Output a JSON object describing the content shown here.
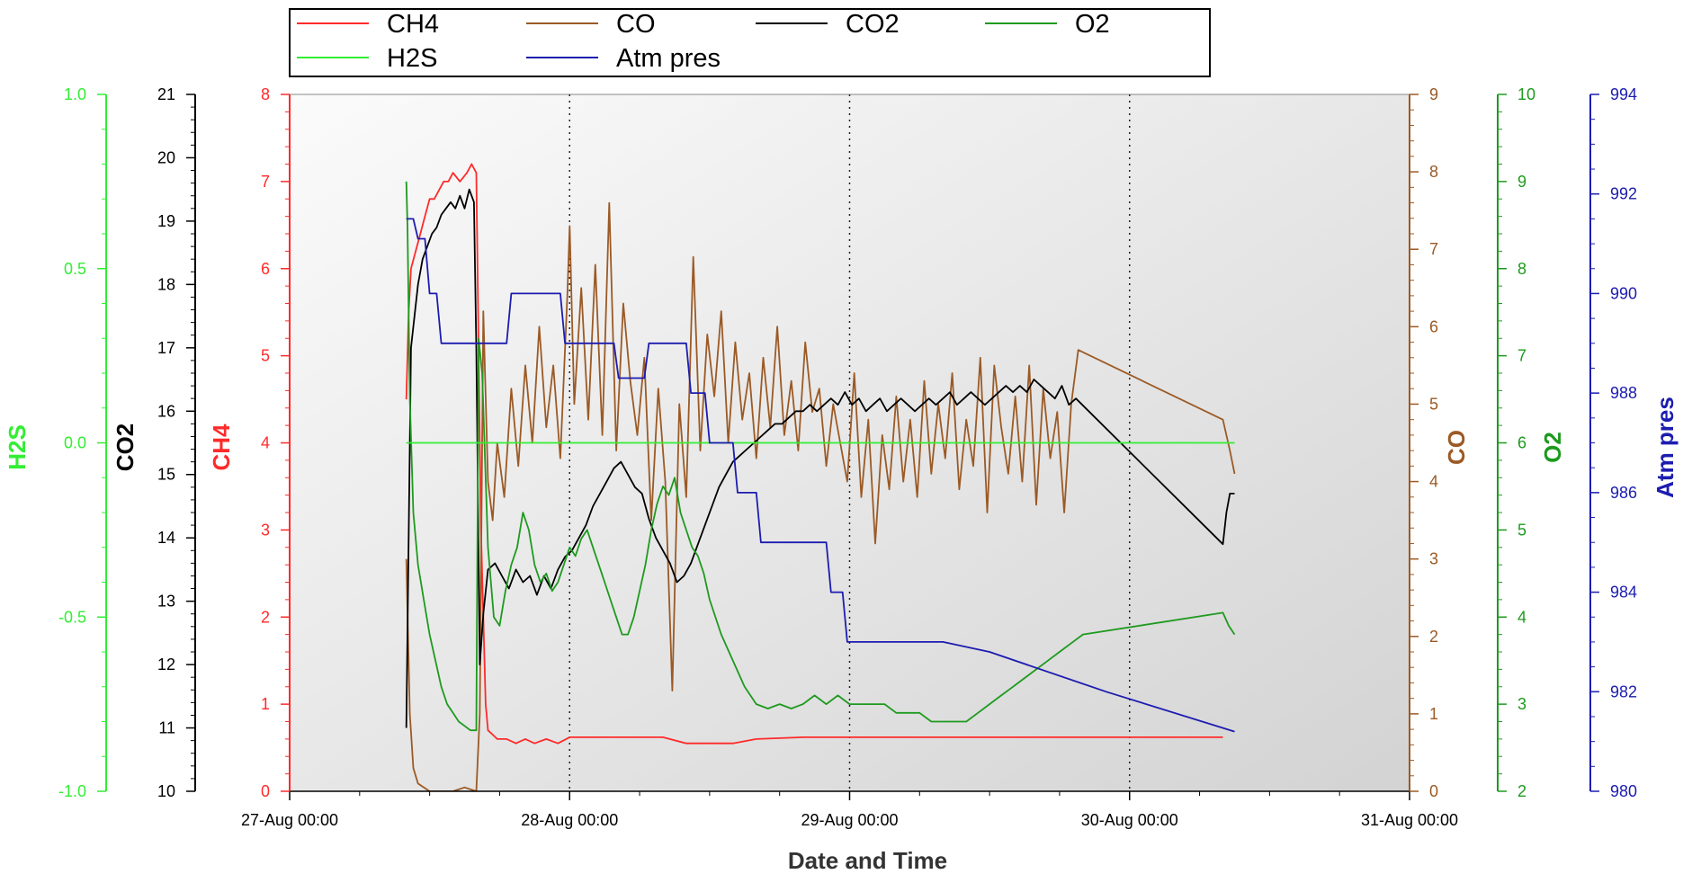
{
  "chart_data": {
    "type": "line",
    "xlabel": "Date and Time",
    "x_ticks": [
      "27-Aug 00:00",
      "28-Aug 00:00",
      "29-Aug 00:00",
      "30-Aug 00:00",
      "31-Aug 00:00"
    ],
    "x_range_hours": [
      0,
      96
    ],
    "grid": {
      "vertical_dotted": true,
      "horizontal": false
    },
    "legend_position": "top-center",
    "axes": [
      {
        "id": "H2S",
        "label": "H2S",
        "color": "#33ee33",
        "min": -1.0,
        "max": 1.0,
        "ticks": [
          "-1.0",
          "-0.5",
          "0.0",
          "0.5",
          "1.0"
        ],
        "side": "left"
      },
      {
        "id": "CO2",
        "label": "CO2",
        "color": "#000000",
        "min": 10,
        "max": 21,
        "ticks": [
          "10",
          "11",
          "12",
          "13",
          "14",
          "15",
          "16",
          "17",
          "18",
          "19",
          "20",
          "21"
        ],
        "side": "left"
      },
      {
        "id": "CH4",
        "label": "CH4",
        "color": "#ff2a2a",
        "min": 0,
        "max": 8,
        "ticks": [
          "0",
          "1",
          "2",
          "3",
          "4",
          "5",
          "6",
          "7",
          "8"
        ],
        "side": "left"
      },
      {
        "id": "CO",
        "label": "CO",
        "color": "#9b5a25",
        "min": 0,
        "max": 9,
        "ticks": [
          "0",
          "1",
          "2",
          "3",
          "4",
          "5",
          "6",
          "7",
          "8",
          "9"
        ],
        "side": "right"
      },
      {
        "id": "O2",
        "label": "O2",
        "color": "#1e9a1e",
        "min": 2,
        "max": 10,
        "ticks": [
          "2",
          "3",
          "4",
          "5",
          "6",
          "7",
          "8",
          "9",
          "10"
        ],
        "side": "right"
      },
      {
        "id": "ATM",
        "label": "Atm pres",
        "color": "#1c1cb0",
        "min": 980,
        "max": 994,
        "ticks": [
          "980",
          "982",
          "984",
          "986",
          "988",
          "990",
          "992",
          "994"
        ],
        "side": "right"
      }
    ],
    "series": [
      {
        "name": "CH4",
        "axis": "CH4",
        "color": "#ff2a2a",
        "x": [
          10.0,
          10.2,
          10.4,
          10.8,
          11.2,
          11.6,
          12.0,
          12.4,
          12.8,
          13.2,
          13.6,
          14.0,
          14.6,
          15.2,
          15.6,
          16.0,
          16.4,
          16.8,
          17.0,
          17.4,
          17.8,
          18.6,
          19.4,
          20.2,
          21.0,
          22.0,
          23.0,
          24.0,
          26.0,
          28.0,
          30.0,
          32.0,
          34.0,
          36.0,
          38.0,
          40.0,
          44.0,
          48.0,
          52.0,
          56.0,
          60.0,
          66.0,
          70.0,
          80.0
        ],
        "y": [
          4.5,
          5.5,
          6.0,
          6.2,
          6.4,
          6.6,
          6.8,
          6.8,
          6.9,
          7.0,
          7.0,
          7.1,
          7.0,
          7.1,
          7.2,
          7.1,
          3.0,
          1.0,
          0.7,
          0.65,
          0.6,
          0.6,
          0.55,
          0.6,
          0.55,
          0.6,
          0.55,
          0.62,
          0.62,
          0.62,
          0.62,
          0.62,
          0.55,
          0.55,
          0.55,
          0.6,
          0.62,
          0.62,
          0.62,
          0.62,
          0.62,
          0.62,
          0.62,
          0.62
        ]
      },
      {
        "name": "CO",
        "axis": "CO",
        "color": "#9b5a25",
        "x": [
          10.0,
          10.3,
          10.6,
          11.0,
          12.0,
          14.0,
          15.0,
          16.0,
          16.3,
          16.6,
          17.0,
          17.4,
          17.8,
          18.4,
          19.0,
          19.6,
          20.2,
          20.8,
          21.4,
          22.0,
          22.6,
          23.2,
          23.8,
          24.0,
          24.4,
          25.0,
          25.6,
          26.2,
          26.8,
          27.4,
          28.0,
          28.6,
          29.2,
          29.8,
          30.4,
          31.0,
          31.6,
          32.2,
          32.8,
          33.4,
          34.0,
          34.6,
          35.2,
          35.8,
          36.4,
          37.0,
          37.6,
          38.2,
          38.8,
          39.4,
          40.0,
          40.6,
          41.2,
          41.8,
          42.4,
          43.0,
          43.6,
          44.2,
          44.8,
          45.4,
          46.0,
          46.6,
          47.2,
          47.8,
          48.4,
          49.0,
          49.6,
          50.2,
          50.8,
          51.4,
          52.0,
          52.6,
          53.2,
          53.8,
          54.4,
          55.0,
          55.6,
          56.2,
          56.8,
          57.4,
          58.0,
          58.6,
          59.2,
          59.8,
          60.4,
          61.0,
          61.6,
          62.2,
          62.8,
          63.4,
          64.0,
          64.6,
          65.2,
          65.8,
          66.4,
          67.0,
          67.6,
          80.0,
          80.6,
          81.0
        ],
        "y": [
          3.0,
          1.0,
          0.3,
          0.1,
          0.0,
          0.0,
          0.05,
          0.0,
          1.0,
          6.2,
          4.0,
          3.5,
          4.5,
          3.8,
          5.2,
          4.2,
          5.5,
          4.5,
          6.0,
          4.7,
          5.5,
          4.3,
          6.4,
          7.3,
          5.0,
          6.5,
          4.8,
          6.8,
          4.6,
          7.6,
          4.4,
          6.3,
          5.3,
          4.6,
          5.6,
          3.5,
          5.2,
          4.0,
          1.3,
          5.0,
          3.8,
          6.9,
          4.4,
          5.9,
          5.1,
          6.2,
          4.5,
          5.8,
          4.8,
          5.4,
          4.3,
          5.6,
          4.7,
          6.0,
          4.6,
          5.3,
          4.4,
          5.8,
          4.9,
          5.2,
          4.2,
          5.0,
          4.5,
          4.0,
          5.4,
          3.8,
          4.8,
          3.2,
          4.6,
          3.9,
          5.1,
          4.0,
          4.8,
          3.8,
          5.3,
          4.1,
          5.0,
          4.3,
          5.4,
          3.9,
          4.8,
          4.2,
          5.6,
          3.6,
          5.5,
          4.7,
          4.1,
          5.1,
          4.0,
          5.5,
          3.7,
          5.2,
          4.3,
          4.9,
          3.6,
          5.0,
          5.7,
          4.8,
          4.4,
          4.1
        ]
      },
      {
        "name": "CO2",
        "axis": "CO2",
        "color": "#000000",
        "x": [
          10.0,
          10.2,
          10.4,
          10.7,
          11.0,
          11.4,
          11.8,
          12.2,
          12.6,
          13.0,
          13.4,
          13.8,
          14.2,
          14.6,
          15.0,
          15.4,
          15.8,
          16.0,
          16.3,
          16.6,
          17.0,
          17.6,
          18.2,
          18.8,
          19.4,
          20.0,
          20.6,
          21.2,
          21.8,
          22.4,
          23.0,
          23.6,
          24.2,
          24.8,
          25.4,
          26.0,
          26.6,
          27.2,
          27.8,
          28.4,
          29.0,
          29.6,
          30.2,
          30.8,
          31.4,
          32.0,
          32.6,
          33.2,
          33.8,
          34.4,
          35.0,
          35.6,
          36.2,
          36.8,
          37.4,
          38.0,
          38.6,
          39.2,
          39.8,
          40.4,
          41.0,
          41.6,
          42.2,
          42.8,
          43.4,
          44.0,
          44.6,
          45.2,
          45.8,
          46.4,
          47.0,
          47.6,
          48.2,
          48.8,
          49.4,
          50.0,
          50.6,
          51.2,
          51.8,
          52.4,
          53.0,
          53.6,
          54.2,
          54.8,
          55.4,
          56.0,
          56.6,
          57.2,
          57.8,
          58.4,
          59.0,
          59.6,
          60.2,
          60.8,
          61.4,
          62.0,
          62.6,
          63.2,
          63.8,
          64.4,
          65.0,
          65.6,
          66.2,
          66.8,
          67.4,
          80.0,
          80.3,
          80.6,
          81.0
        ],
        "y": [
          11.0,
          14.0,
          17.0,
          17.5,
          18.0,
          18.4,
          18.6,
          18.8,
          18.9,
          19.1,
          19.2,
          19.3,
          19.2,
          19.4,
          19.2,
          19.5,
          19.3,
          17.0,
          12.0,
          12.8,
          13.5,
          13.6,
          13.4,
          13.2,
          13.5,
          13.3,
          13.4,
          13.1,
          13.4,
          13.2,
          13.5,
          13.7,
          13.8,
          14.0,
          14.2,
          14.5,
          14.7,
          14.9,
          15.1,
          15.2,
          15.0,
          14.8,
          14.7,
          14.3,
          14.0,
          13.8,
          13.6,
          13.3,
          13.4,
          13.6,
          13.9,
          14.2,
          14.5,
          14.8,
          15.0,
          15.2,
          15.3,
          15.4,
          15.5,
          15.6,
          15.7,
          15.8,
          15.8,
          15.9,
          16.0,
          16.0,
          16.1,
          16.0,
          16.1,
          16.2,
          16.1,
          16.3,
          16.1,
          16.2,
          16.0,
          16.1,
          16.2,
          16.0,
          16.1,
          16.2,
          16.1,
          16.0,
          16.1,
          16.2,
          16.1,
          16.2,
          16.3,
          16.1,
          16.2,
          16.3,
          16.2,
          16.1,
          16.2,
          16.3,
          16.4,
          16.3,
          16.4,
          16.3,
          16.5,
          16.4,
          16.3,
          16.2,
          16.4,
          16.1,
          16.2,
          13.9,
          14.4,
          14.7,
          14.7
        ]
      },
      {
        "name": "O2",
        "axis": "O2",
        "color": "#1e9a1e",
        "x": [
          10.0,
          10.1,
          10.3,
          10.6,
          11.0,
          11.5,
          12.0,
          12.5,
          13.0,
          13.5,
          14.0,
          14.5,
          15.0,
          15.5,
          16.0,
          16.2,
          16.5,
          17.0,
          17.5,
          18.0,
          18.5,
          19.0,
          19.5,
          20.0,
          20.5,
          21.0,
          21.5,
          22.0,
          22.5,
          23.0,
          23.5,
          24.0,
          24.5,
          25.0,
          25.5,
          26.0,
          26.5,
          27.0,
          27.5,
          28.0,
          28.5,
          29.0,
          29.5,
          30.0,
          30.5,
          31.0,
          31.5,
          32.0,
          32.5,
          33.0,
          33.5,
          34.0,
          34.5,
          35.0,
          35.5,
          36.0,
          37.0,
          38.0,
          39.0,
          40.0,
          41.0,
          42.0,
          43.0,
          44.0,
          45.0,
          46.0,
          47.0,
          48.0,
          49.0,
          50.0,
          51.0,
          52.0,
          53.0,
          54.0,
          55.0,
          56.0,
          57.0,
          58.0,
          59.0,
          60.0,
          61.0,
          62.0,
          63.0,
          64.0,
          65.0,
          66.0,
          67.0,
          68.0,
          80.0,
          80.5,
          81.0
        ],
        "y": [
          9.0,
          8.5,
          6.5,
          5.2,
          4.6,
          4.2,
          3.8,
          3.5,
          3.2,
          3.0,
          2.9,
          2.8,
          2.75,
          2.7,
          2.7,
          7.2,
          6.8,
          4.8,
          4.0,
          3.9,
          4.3,
          4.6,
          4.8,
          5.2,
          5.0,
          4.6,
          4.4,
          4.5,
          4.3,
          4.4,
          4.6,
          4.8,
          4.7,
          4.9,
          5.0,
          4.8,
          4.6,
          4.4,
          4.2,
          4.0,
          3.8,
          3.8,
          4.0,
          4.3,
          4.6,
          5.0,
          5.3,
          5.5,
          5.4,
          5.6,
          5.2,
          5.0,
          4.8,
          4.7,
          4.5,
          4.2,
          3.8,
          3.5,
          3.2,
          3.0,
          2.95,
          3.0,
          2.95,
          3.0,
          3.1,
          3.0,
          3.1,
          3.0,
          3.0,
          3.0,
          3.0,
          2.9,
          2.9,
          2.9,
          2.8,
          2.8,
          2.8,
          2.8,
          2.9,
          3.0,
          3.1,
          3.2,
          3.3,
          3.4,
          3.5,
          3.6,
          3.7,
          3.8,
          4.05,
          3.9,
          3.8
        ]
      },
      {
        "name": "H2S",
        "axis": "H2S",
        "color": "#33ee33",
        "x": [
          10.0,
          81.0
        ],
        "y": [
          0.0,
          0.0
        ]
      },
      {
        "name": "Atm pres",
        "axis": "ATM",
        "color": "#1c1cb0",
        "x": [
          10.0,
          10.6,
          11.0,
          11.6,
          12.0,
          12.6,
          13.0,
          13.6,
          14.0,
          14.6,
          15.0,
          15.6,
          16.0,
          16.3,
          17.0,
          18.6,
          19.0,
          22.0,
          22.4,
          23.2,
          23.6,
          27.0,
          27.4,
          27.8,
          28.2,
          30.0,
          30.4,
          30.8,
          31.2,
          32.0,
          32.4,
          33.2,
          33.6,
          34.0,
          34.4,
          35.6,
          36.0,
          38.0,
          38.4,
          40.0,
          40.4,
          46.0,
          46.4,
          47.4,
          47.8,
          48.0,
          50.0,
          51.0,
          53.0,
          56.0,
          60.0,
          70.0,
          81.0
        ],
        "y": [
          991.5,
          991.5,
          991.1,
          991.1,
          990.0,
          990.0,
          989.0,
          989.0,
          989.0,
          989.0,
          989.0,
          989.0,
          989.0,
          989.0,
          989.0,
          989.0,
          990.0,
          990.0,
          990.0,
          990.0,
          989.0,
          989.0,
          989.0,
          989.0,
          988.3,
          988.3,
          988.3,
          989.0,
          989.0,
          989.0,
          989.0,
          989.0,
          989.0,
          989.0,
          988.0,
          988.0,
          987.0,
          987.0,
          986.0,
          986.0,
          985.0,
          985.0,
          984.0,
          984.0,
          983.0,
          983.0,
          983.0,
          983.0,
          983.0,
          983.0,
          982.8,
          982.0,
          981.2
        ]
      }
    ]
  }
}
